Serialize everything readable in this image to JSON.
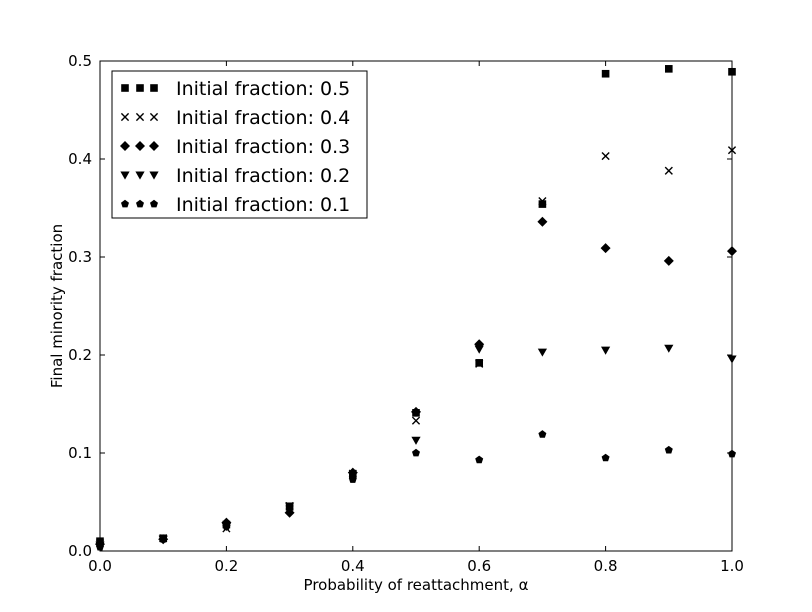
{
  "chart_data": {
    "type": "scatter",
    "title": "",
    "xlabel": "Probability of reattachment, α",
    "ylabel": "Final minority fraction",
    "xlim": [
      0.0,
      1.0
    ],
    "ylim": [
      0.0,
      0.5
    ],
    "xticks": [
      "0.0",
      "0.2",
      "0.4",
      "0.6",
      "0.8",
      "1.0"
    ],
    "yticks": [
      "0.0",
      "0.1",
      "0.2",
      "0.3",
      "0.4",
      "0.5"
    ],
    "grid": false,
    "legend_position": "top-left",
    "color": "#000000",
    "x": [
      0.0,
      0.1,
      0.2,
      0.3,
      0.4,
      0.5,
      0.6,
      0.7,
      0.8,
      0.9,
      1.0
    ],
    "series": [
      {
        "name": "Initial fraction: 0.5",
        "marker": "square",
        "values": [
          0.01,
          0.013,
          0.027,
          0.045,
          0.078,
          0.141,
          0.192,
          0.354,
          0.487,
          0.492,
          0.489
        ]
      },
      {
        "name": "Initial fraction: 0.4",
        "marker": "x",
        "values": [
          0.008,
          0.013,
          0.023,
          0.046,
          0.079,
          0.133,
          0.191,
          0.357,
          0.403,
          0.388,
          0.409
        ]
      },
      {
        "name": "Initial fraction: 0.3",
        "marker": "diamond",
        "values": [
          0.007,
          0.012,
          0.029,
          0.039,
          0.08,
          0.142,
          0.211,
          0.336,
          0.309,
          0.296,
          0.306
        ]
      },
      {
        "name": "Initial fraction: 0.2",
        "marker": "triangle-down",
        "values": [
          0.006,
          0.012,
          0.025,
          0.046,
          0.077,
          0.113,
          0.206,
          0.203,
          0.205,
          0.207,
          0.196
        ]
      },
      {
        "name": "Initial fraction: 0.1",
        "marker": "pentagon",
        "values": [
          0.004,
          0.012,
          0.025,
          0.045,
          0.073,
          0.1,
          0.093,
          0.119,
          0.095,
          0.103,
          0.099
        ]
      }
    ]
  }
}
